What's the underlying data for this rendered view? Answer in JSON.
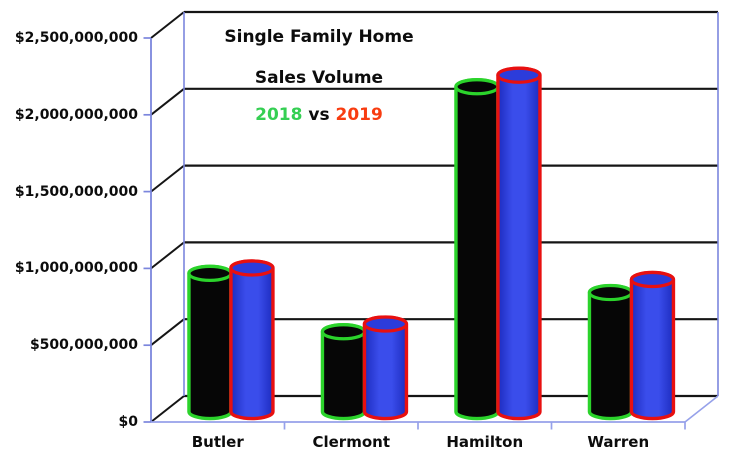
{
  "chart_data": {
    "type": "bar",
    "render_style": "3d-cylinder",
    "title_lines": [
      "Single Family Home",
      "Sales Volume"
    ],
    "legend": {
      "year1": "2018",
      "separator": "vs",
      "year2": "2019",
      "year1_color": "#35cf53",
      "year2_color": "#f83c10",
      "position": "top-center-in-plot"
    },
    "categories": [
      "Butler",
      "Clermont",
      "Hamilton",
      "Warren"
    ],
    "series": [
      {
        "name": "2018",
        "values": [
          900000000,
          520000000,
          2115000000,
          775000000
        ],
        "body_color": "#060606",
        "outline_color": "#2bd32b"
      },
      {
        "name": "2019",
        "values": [
          935000000,
          570000000,
          2190000000,
          860000000
        ],
        "body_color": "#2c3cdb",
        "body_gradient": [
          "#1d2cc0",
          "#3a4deb",
          "#1d2cc0"
        ],
        "outline_color": "#e81010"
      }
    ],
    "y_axis": {
      "min": 0,
      "max": 2500000000,
      "tick_values": [
        0,
        500000000,
        1000000000,
        1500000000,
        2000000000,
        2500000000
      ],
      "tick_labels": [
        "$0",
        "$500,000,000",
        "$1,000,000,000",
        "$1,500,000,000",
        "$2,000,000,000",
        "$2,500,000,000"
      ]
    },
    "grid": true,
    "gridline_color": "#151515",
    "axis_color": "#7b86dd",
    "floor_color": "#96a1ea",
    "text_color": "#0c0c0c",
    "background": "#ffffff"
  }
}
